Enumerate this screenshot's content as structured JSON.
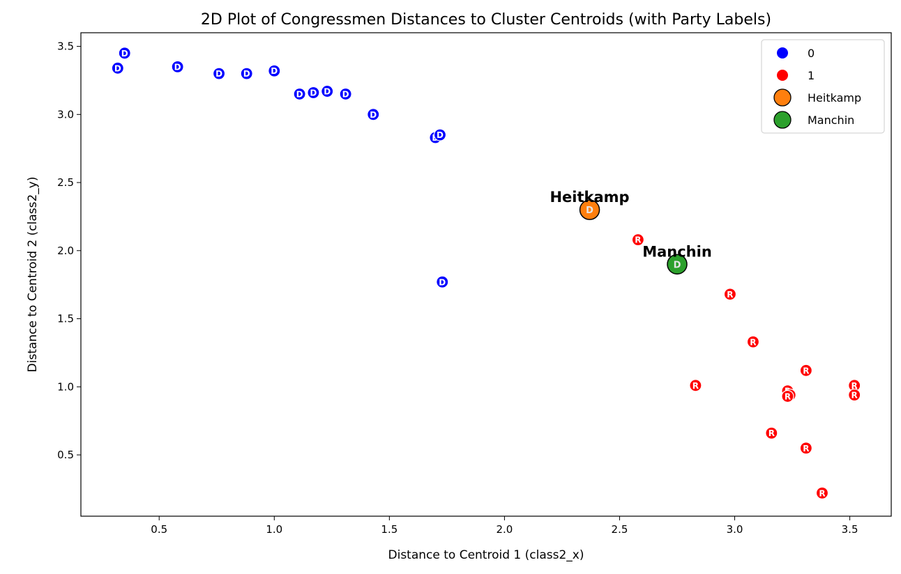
{
  "chart_data": {
    "type": "scatter",
    "title": "2D Plot of Congressmen Distances to Cluster Centroids (with Party Labels)",
    "xlabel": "Distance to Centroid 1 (class2_x)",
    "ylabel": "Distance to Centroid 2 (class2_y)",
    "xlim": [
      0.16,
      3.68
    ],
    "ylim": [
      0.05,
      3.6
    ],
    "xticks": [
      "0.5",
      "1.0",
      "1.5",
      "2.0",
      "2.5",
      "3.0",
      "3.5"
    ],
    "yticks": [
      "0.5",
      "1.0",
      "1.5",
      "2.0",
      "2.5",
      "3.0",
      "3.5"
    ],
    "grid": false,
    "legend_position": "top-right",
    "series": [
      {
        "name": "0",
        "color": "#0000ff",
        "points": [
          {
            "x": 0.32,
            "y": 3.34,
            "label": "D"
          },
          {
            "x": 0.35,
            "y": 3.45,
            "label": "D"
          },
          {
            "x": 0.58,
            "y": 3.35,
            "label": "D"
          },
          {
            "x": 0.76,
            "y": 3.3,
            "label": "D"
          },
          {
            "x": 0.88,
            "y": 3.3,
            "label": "D"
          },
          {
            "x": 1.0,
            "y": 3.32,
            "label": "D"
          },
          {
            "x": 1.11,
            "y": 3.15,
            "label": "D"
          },
          {
            "x": 1.17,
            "y": 3.16,
            "label": "D"
          },
          {
            "x": 1.23,
            "y": 3.17,
            "label": "D"
          },
          {
            "x": 1.31,
            "y": 3.15,
            "label": "D"
          },
          {
            "x": 1.43,
            "y": 3.0,
            "label": "D"
          },
          {
            "x": 1.7,
            "y": 2.83,
            "label": "D"
          },
          {
            "x": 1.72,
            "y": 2.85,
            "label": "D"
          },
          {
            "x": 1.73,
            "y": 1.77,
            "label": "D"
          }
        ]
      },
      {
        "name": "1",
        "color": "#ff0000",
        "points": [
          {
            "x": 2.58,
            "y": 2.08,
            "label": "R"
          },
          {
            "x": 2.98,
            "y": 1.68,
            "label": "R"
          },
          {
            "x": 3.08,
            "y": 1.33,
            "label": "R"
          },
          {
            "x": 2.83,
            "y": 1.01,
            "label": "R"
          },
          {
            "x": 3.31,
            "y": 1.12,
            "label": "R"
          },
          {
            "x": 3.23,
            "y": 0.97,
            "label": "R"
          },
          {
            "x": 3.24,
            "y": 0.94,
            "label": "R"
          },
          {
            "x": 3.23,
            "y": 0.93,
            "label": "R"
          },
          {
            "x": 3.52,
            "y": 1.01,
            "label": "R"
          },
          {
            "x": 3.52,
            "y": 0.94,
            "label": "R"
          },
          {
            "x": 3.16,
            "y": 0.66,
            "label": "R"
          },
          {
            "x": 3.31,
            "y": 0.55,
            "label": "R"
          },
          {
            "x": 3.38,
            "y": 0.22,
            "label": "R"
          }
        ]
      },
      {
        "name": "Heitkamp",
        "color": "#ff7f0e",
        "points": [
          {
            "x": 2.37,
            "y": 2.3,
            "label": "D"
          }
        ]
      },
      {
        "name": "Manchin",
        "color": "#2ca02c",
        "points": [
          {
            "x": 2.75,
            "y": 1.9,
            "label": "D"
          }
        ]
      }
    ],
    "annotations": [
      {
        "text": "Heitkamp",
        "x": 2.37,
        "y": 2.3
      },
      {
        "text": "Manchin",
        "x": 2.75,
        "y": 1.9
      }
    ]
  }
}
